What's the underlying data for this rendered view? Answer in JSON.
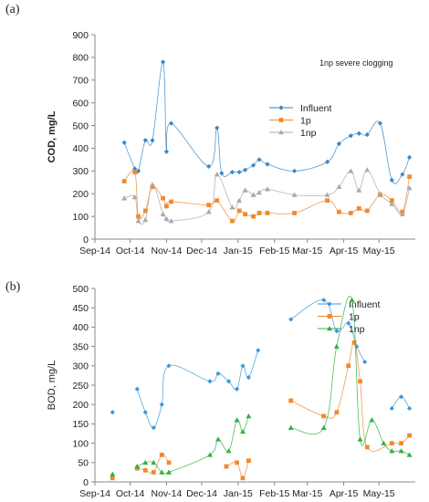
{
  "chart_data": [
    {
      "panel_label": "(a)",
      "type": "line",
      "xlabel": "",
      "ylabel": "COD, mg/L",
      "ylim": [
        0,
        900
      ],
      "yticks": [
        0,
        100,
        200,
        300,
        400,
        500,
        600,
        700,
        800,
        900
      ],
      "xlim": [
        "2014-09-01",
        "2015-06-01"
      ],
      "xticks": [
        {
          "date": "2014-09-01",
          "label": "Sep-14"
        },
        {
          "date": "2014-10-01",
          "label": "Oct-14"
        },
        {
          "date": "2014-11-01",
          "label": "Nov-14"
        },
        {
          "date": "2014-12-01",
          "label": "Dec-14"
        },
        {
          "date": "2015-01-01",
          "label": "Jan-15"
        },
        {
          "date": "2015-02-01",
          "label": "Feb-15"
        },
        {
          "date": "2015-03-01",
          "label": "Mar-15"
        },
        {
          "date": "2015-04-01",
          "label": "Apr-15"
        },
        {
          "date": "2015-05-01",
          "label": "May-15"
        }
      ],
      "grid": false,
      "annotation": "1np severe clogging",
      "legend_position": "top-right",
      "smooth": true,
      "series": [
        {
          "name": "Influent",
          "color": "#3a87c8",
          "marker": "diamond",
          "x": [
            "2014-09-26",
            "2014-10-05",
            "2014-10-08",
            "2014-10-14",
            "2014-10-20",
            "2014-10-29",
            "2014-11-01",
            "2014-11-05",
            "2014-12-07",
            "2014-12-14",
            "2014-12-18",
            "2014-12-27",
            "2015-01-02",
            "2015-01-07",
            "2015-01-14",
            "2015-01-19",
            "2015-01-26",
            "2015-02-18",
            "2015-03-18",
            "2015-03-28",
            "2015-04-07",
            "2015-04-14",
            "2015-04-21",
            "2015-05-02",
            "2015-05-12",
            "2015-05-21",
            "2015-05-27"
          ],
          "y": [
            425,
            310,
            300,
            435,
            435,
            780,
            385,
            510,
            320,
            490,
            290,
            295,
            295,
            305,
            325,
            350,
            330,
            300,
            340,
            420,
            455,
            465,
            460,
            510,
            260,
            285,
            360
          ]
        },
        {
          "name": "1p",
          "color": "#f08a2e",
          "marker": "square",
          "x": [
            "2014-09-26",
            "2014-10-05",
            "2014-10-08",
            "2014-10-14",
            "2014-10-20",
            "2014-10-29",
            "2014-11-01",
            "2014-11-05",
            "2014-12-07",
            "2014-12-14",
            "2014-12-27",
            "2015-01-02",
            "2015-01-07",
            "2015-01-14",
            "2015-01-19",
            "2015-01-26",
            "2015-02-18",
            "2015-03-18",
            "2015-03-28",
            "2015-04-07",
            "2015-04-14",
            "2015-04-21",
            "2015-05-02",
            "2015-05-12",
            "2015-05-21",
            "2015-05-27"
          ],
          "y": [
            255,
            295,
            100,
            125,
            230,
            180,
            145,
            165,
            150,
            170,
            80,
            125,
            110,
            100,
            115,
            115,
            115,
            170,
            120,
            115,
            135,
            125,
            195,
            170,
            120,
            275
          ]
        },
        {
          "name": "1np",
          "color": "#a9a9a9",
          "marker": "triangle",
          "x": [
            "2014-09-26",
            "2014-10-05",
            "2014-10-08",
            "2014-10-14",
            "2014-10-20",
            "2014-10-29",
            "2014-11-01",
            "2014-11-05",
            "2014-12-07",
            "2014-12-14",
            "2014-12-27",
            "2015-01-02",
            "2015-01-07",
            "2015-01-14",
            "2015-01-19",
            "2015-01-26",
            "2015-02-18",
            "2015-03-18",
            "2015-03-28",
            "2015-04-07",
            "2015-04-14",
            "2015-04-21",
            "2015-05-02",
            "2015-05-12",
            "2015-05-21",
            "2015-05-27"
          ],
          "y": [
            180,
            185,
            80,
            85,
            240,
            110,
            90,
            80,
            120,
            285,
            140,
            170,
            215,
            195,
            205,
            220,
            195,
            195,
            230,
            300,
            215,
            305,
            200,
            155,
            110,
            225
          ]
        }
      ]
    },
    {
      "panel_label": "(b)",
      "type": "line",
      "xlabel": "",
      "ylabel": "BOD, mg/L",
      "ylim": [
        0,
        500
      ],
      "yticks": [
        0,
        50,
        100,
        150,
        200,
        250,
        300,
        350,
        400,
        450,
        500
      ],
      "xlim": [
        "2014-09-01",
        "2015-06-01"
      ],
      "xticks": [
        {
          "date": "2014-09-01",
          "label": "Sep-14"
        },
        {
          "date": "2014-10-01",
          "label": "Oct-14"
        },
        {
          "date": "2014-11-01",
          "label": "Nov-14"
        },
        {
          "date": "2014-12-01",
          "label": "Dec-14"
        },
        {
          "date": "2015-01-01",
          "label": "Jan-15"
        },
        {
          "date": "2015-02-01",
          "label": "Feb-15"
        },
        {
          "date": "2015-03-01",
          "label": "Mar-15"
        },
        {
          "date": "2015-04-01",
          "label": "Apr-15"
        },
        {
          "date": "2015-05-01",
          "label": "May-15"
        }
      ],
      "grid": false,
      "legend_position": "top-right",
      "smooth": true,
      "series": [
        {
          "name": "Influent",
          "color": "#3a9ad9",
          "marker": "diamond",
          "segments": [
            {
              "x": [
                "2014-09-16"
              ],
              "y": [
                180
              ]
            },
            {
              "x": [
                "2014-10-07",
                "2014-10-14",
                "2014-10-21",
                "2014-10-28",
                "2014-11-03",
                "2014-12-08",
                "2014-12-15",
                "2014-12-24",
                "2014-12-31",
                "2015-01-05",
                "2015-01-10",
                "2015-01-18"
              ],
              "y": [
                240,
                180,
                140,
                200,
                300,
                260,
                280,
                260,
                240,
                300,
                270,
                340
              ]
            },
            {
              "x": [
                "2015-02-15",
                "2015-03-15",
                "2015-03-26",
                "2015-04-05",
                "2015-04-12",
                "2015-04-19"
              ],
              "y": [
                420,
                470,
                390,
                410,
                350,
                310
              ]
            },
            {
              "x": [
                "2015-05-12",
                "2015-05-20",
                "2015-05-27"
              ],
              "y": [
                190,
                220,
                190
              ]
            }
          ]
        },
        {
          "name": "1p",
          "color": "#f08a2e",
          "marker": "square",
          "segments": [
            {
              "x": [
                "2014-09-16"
              ],
              "y": [
                10
              ]
            },
            {
              "x": [
                "2014-10-07",
                "2014-10-14",
                "2014-10-21",
                "2014-10-28",
                "2014-11-03"
              ],
              "y": [
                35,
                30,
                25,
                70,
                50
              ]
            },
            {
              "x": [
                "2014-12-22",
                "2014-12-31",
                "2015-01-05",
                "2015-01-10"
              ],
              "y": [
                40,
                50,
                10,
                55
              ]
            },
            {
              "x": [
                "2015-02-15",
                "2015-03-15",
                "2015-03-26",
                "2015-04-05",
                "2015-04-10",
                "2015-04-15",
                "2015-04-21",
                "2015-05-12",
                "2015-05-20",
                "2015-05-27"
              ],
              "y": [
                210,
                170,
                180,
                300,
                360,
                260,
                90,
                100,
                100,
                120
              ]
            }
          ]
        },
        {
          "name": "1np",
          "color": "#2fb344",
          "marker": "triangle",
          "segments": [
            {
              "x": [
                "2014-09-16"
              ],
              "y": [
                20
              ]
            },
            {
              "x": [
                "2014-10-07",
                "2014-10-14",
                "2014-10-21",
                "2014-10-28",
                "2014-11-03",
                "2014-12-08",
                "2014-12-15",
                "2014-12-24",
                "2014-12-31",
                "2015-01-05",
                "2015-01-10"
              ],
              "y": [
                40,
                50,
                50,
                25,
                25,
                70,
                110,
                80,
                160,
                130,
                170
              ]
            },
            {
              "x": [
                "2015-02-15",
                "2015-03-15",
                "2015-03-26",
                "2015-04-08",
                "2015-04-15",
                "2015-04-25",
                "2015-05-05",
                "2015-05-12",
                "2015-05-20",
                "2015-05-27"
              ],
              "y": [
                140,
                140,
                350,
                470,
                110,
                160,
                100,
                80,
                80,
                70
              ]
            }
          ]
        }
      ]
    }
  ]
}
